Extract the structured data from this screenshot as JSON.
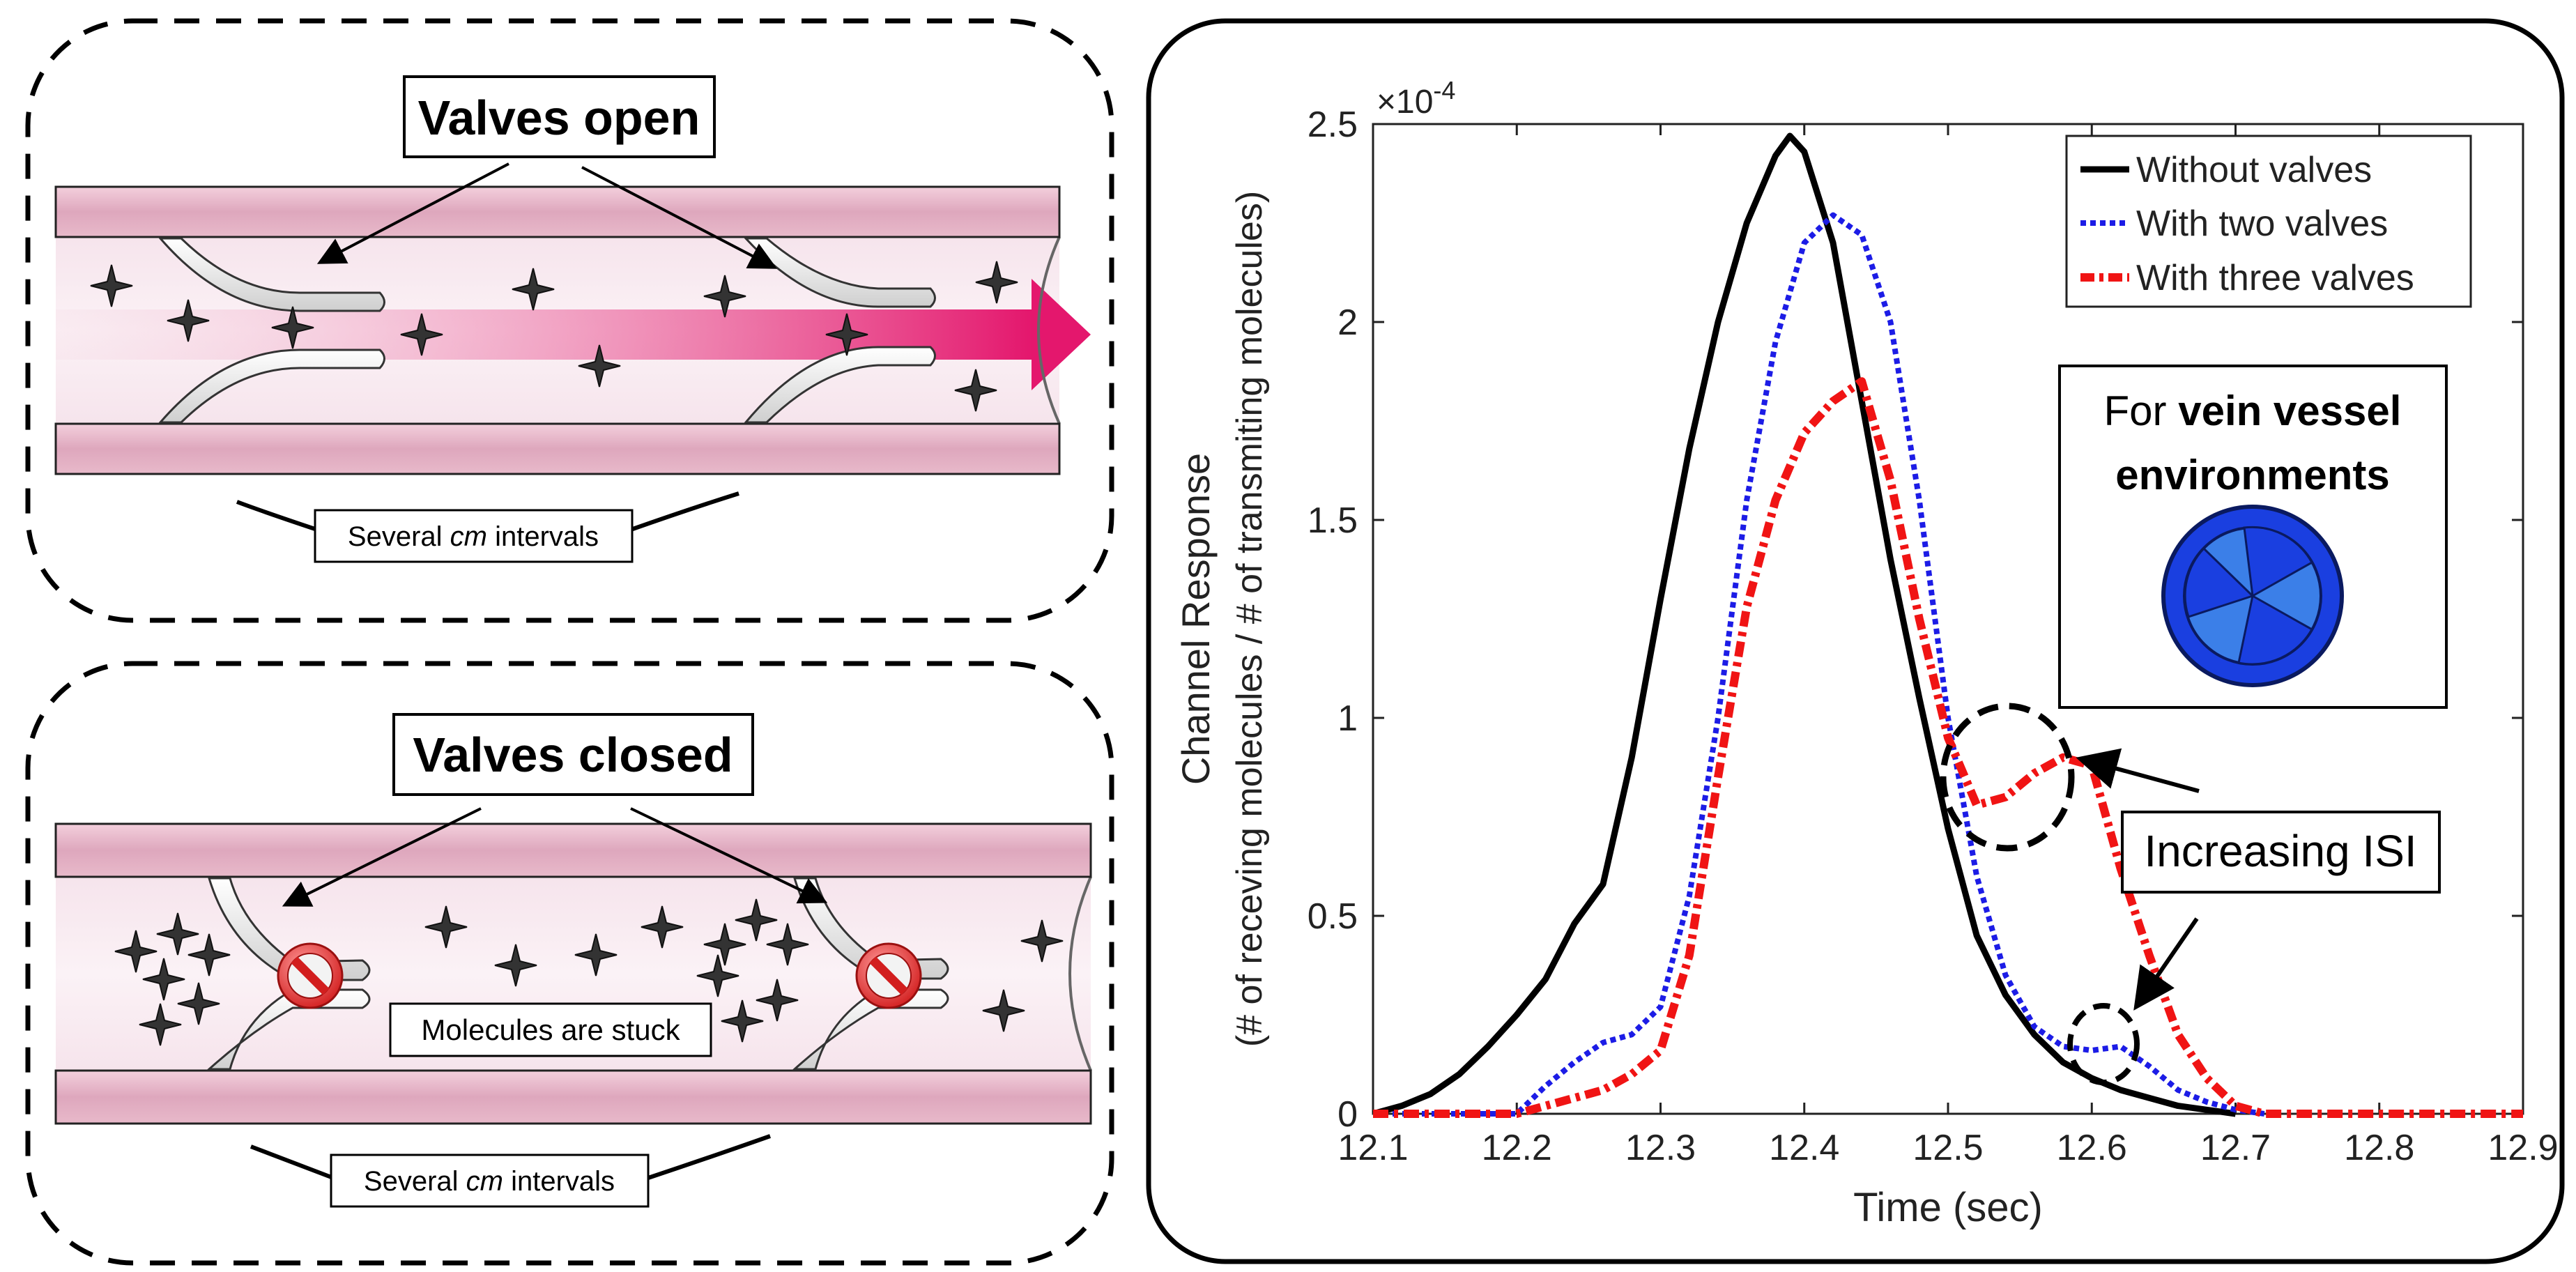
{
  "top_panel": {
    "title": "Valves open",
    "interval_label_pre": "Several ",
    "interval_label_em": "cm",
    "interval_label_post": " intervals"
  },
  "bottom_panel": {
    "title": "Valves closed",
    "stuck_label": "Molecules are stuck",
    "interval_label_pre": "Several ",
    "interval_label_em": "cm",
    "interval_label_post": " intervals"
  },
  "chart_data": {
    "type": "line",
    "xlabel": "Time (sec)",
    "ylabel_line1": "Channel Response",
    "ylabel_line2": "(# of receving molecules / # of transmiting molecules)",
    "y_scale_base": "×10",
    "y_scale_exp": "-4",
    "xlim": [
      12.1,
      12.9
    ],
    "ylim": [
      0,
      2.5
    ],
    "xticks": [
      12.1,
      12.2,
      12.3,
      12.4,
      12.5,
      12.6,
      12.7,
      12.8,
      12.9
    ],
    "xtick_labels": [
      "12.1",
      "12.2",
      "12.3",
      "12.4",
      "12.5",
      "12.6",
      "12.7",
      "12.8",
      "12.9"
    ],
    "yticks": [
      0,
      0.5,
      1,
      1.5,
      2,
      2.5
    ],
    "ytick_labels": [
      "0",
      "0.5",
      "1",
      "1.5",
      "2",
      "2.5"
    ],
    "series": [
      {
        "name": "Without valves",
        "color": "#000000",
        "style": "solid",
        "x": [
          12.1,
          12.12,
          12.14,
          12.16,
          12.18,
          12.2,
          12.22,
          12.24,
          12.26,
          12.28,
          12.3,
          12.32,
          12.34,
          12.36,
          12.38,
          12.39,
          12.4,
          12.42,
          12.44,
          12.46,
          12.48,
          12.5,
          12.52,
          12.54,
          12.56,
          12.58,
          12.6,
          12.62,
          12.64,
          12.66,
          12.68,
          12.7
        ],
        "y": [
          0.0,
          0.02,
          0.05,
          0.1,
          0.17,
          0.25,
          0.34,
          0.48,
          0.58,
          0.9,
          1.3,
          1.68,
          2.0,
          2.25,
          2.42,
          2.47,
          2.43,
          2.2,
          1.8,
          1.4,
          1.05,
          0.72,
          0.45,
          0.3,
          0.2,
          0.13,
          0.09,
          0.06,
          0.04,
          0.02,
          0.01,
          0.0
        ]
      },
      {
        "name": "With two valves",
        "color": "#1c1ce6",
        "style": "dotted",
        "x": [
          12.1,
          12.2,
          12.22,
          12.24,
          12.26,
          12.28,
          12.3,
          12.32,
          12.34,
          12.36,
          12.38,
          12.4,
          12.42,
          12.44,
          12.46,
          12.48,
          12.5,
          12.52,
          12.54,
          12.56,
          12.58,
          12.6,
          12.62,
          12.64,
          12.66,
          12.68,
          12.7,
          12.72
        ],
        "y": [
          0.0,
          0.0,
          0.07,
          0.13,
          0.18,
          0.2,
          0.27,
          0.55,
          1.0,
          1.55,
          1.95,
          2.2,
          2.27,
          2.22,
          2.0,
          1.55,
          1.0,
          0.6,
          0.35,
          0.22,
          0.17,
          0.16,
          0.17,
          0.12,
          0.06,
          0.03,
          0.01,
          0.0
        ]
      },
      {
        "name": "With three valves",
        "color": "#f01414",
        "style": "dashdot",
        "x": [
          12.1,
          12.2,
          12.22,
          12.24,
          12.26,
          12.28,
          12.3,
          12.32,
          12.34,
          12.36,
          12.38,
          12.4,
          12.42,
          12.44,
          12.46,
          12.48,
          12.5,
          12.52,
          12.54,
          12.56,
          12.58,
          12.6,
          12.62,
          12.64,
          12.66,
          12.68,
          12.7,
          12.72,
          12.8,
          12.9
        ],
        "y": [
          0.0,
          0.0,
          0.02,
          0.04,
          0.06,
          0.1,
          0.16,
          0.4,
          0.85,
          1.28,
          1.55,
          1.72,
          1.8,
          1.85,
          1.6,
          1.25,
          0.95,
          0.78,
          0.8,
          0.86,
          0.9,
          0.88,
          0.62,
          0.4,
          0.2,
          0.09,
          0.02,
          0.0,
          0.0,
          0.0
        ]
      }
    ],
    "legend_position": "top-right",
    "annotations": {
      "vein_box_line1_pre": "For ",
      "vein_box_line1_bold": "vein vessel",
      "vein_box_line2_bold": "environments",
      "isi_label": "Increasing ISI"
    }
  }
}
